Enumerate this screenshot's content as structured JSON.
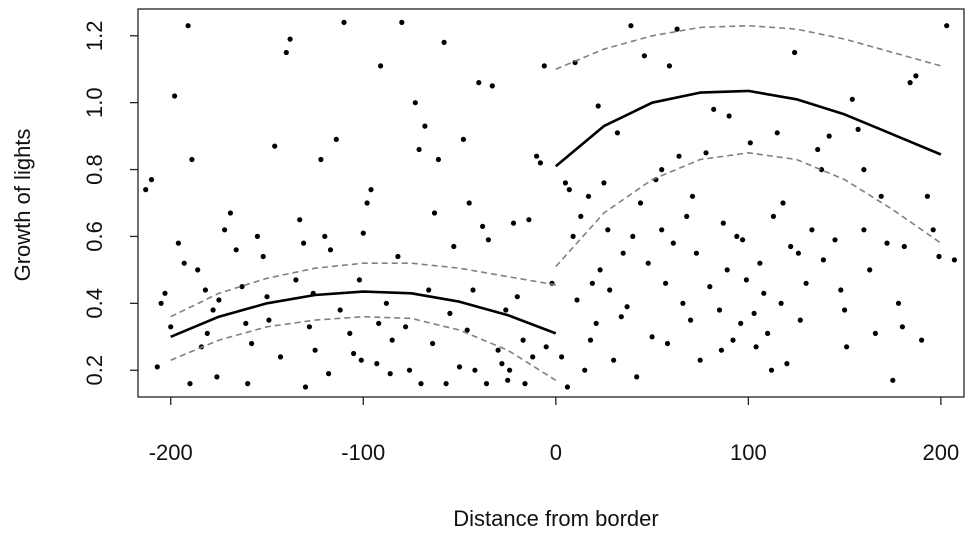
{
  "chart_data": {
    "type": "scatter",
    "title": "",
    "xlabel": "Distance from border",
    "ylabel": "Growth of lights",
    "xlim": [
      -217,
      212
    ],
    "ylim": [
      0.12,
      1.28
    ],
    "xticks": [
      -200,
      -100,
      0,
      100,
      200
    ],
    "xtick_labels": [
      "-200",
      "-100",
      "0",
      "100",
      "200"
    ],
    "yticks": [
      0.2,
      0.4,
      0.6,
      0.8,
      1.0,
      1.2
    ],
    "ytick_labels": [
      "0.2",
      "0.4",
      "0.6",
      "0.8",
      "1.0",
      "1.2"
    ],
    "grid": false,
    "colors": {
      "points": "#000000",
      "fit": "#000000",
      "ci": "#808080"
    },
    "fit_left": {
      "x": [
        -200,
        -175,
        -150,
        -125,
        -100,
        -75,
        -50,
        -25,
        0
      ],
      "y": [
        0.3,
        0.36,
        0.4,
        0.425,
        0.435,
        0.43,
        0.405,
        0.365,
        0.31
      ]
    },
    "ci_left_upper": {
      "x": [
        -200,
        -175,
        -150,
        -125,
        -100,
        -75,
        -50,
        -25,
        0
      ],
      "y": [
        0.36,
        0.43,
        0.475,
        0.505,
        0.52,
        0.52,
        0.505,
        0.48,
        0.455
      ]
    },
    "ci_left_lower": {
      "x": [
        -200,
        -175,
        -150,
        -125,
        -100,
        -75,
        -50,
        -25,
        0
      ],
      "y": [
        0.23,
        0.29,
        0.33,
        0.35,
        0.36,
        0.355,
        0.32,
        0.26,
        0.17
      ]
    },
    "fit_right": {
      "x": [
        0,
        25,
        50,
        75,
        100,
        125,
        150,
        175,
        200
      ],
      "y": [
        0.81,
        0.93,
        1.0,
        1.03,
        1.035,
        1.01,
        0.965,
        0.905,
        0.845
      ]
    },
    "ci_right_upper": {
      "x": [
        0,
        25,
        50,
        75,
        100,
        125,
        150,
        175,
        200
      ],
      "y": [
        1.1,
        1.16,
        1.2,
        1.225,
        1.23,
        1.22,
        1.19,
        1.15,
        1.11
      ]
    },
    "ci_right_lower": {
      "x": [
        0,
        25,
        50,
        75,
        100,
        125,
        150,
        175,
        200
      ],
      "y": [
        0.51,
        0.67,
        0.77,
        0.83,
        0.85,
        0.83,
        0.77,
        0.68,
        0.58
      ]
    },
    "points": [
      {
        "x": -213,
        "y": 0.74
      },
      {
        "x": -210,
        "y": 0.77
      },
      {
        "x": -205,
        "y": 0.4
      },
      {
        "x": -203,
        "y": 0.43
      },
      {
        "x": -200,
        "y": 0.33
      },
      {
        "x": -198,
        "y": 1.02
      },
      {
        "x": -196,
        "y": 0.58
      },
      {
        "x": -193,
        "y": 0.52
      },
      {
        "x": -191,
        "y": 1.23
      },
      {
        "x": -189,
        "y": 0.83
      },
      {
        "x": -186,
        "y": 0.5
      },
      {
        "x": -184,
        "y": 0.27
      },
      {
        "x": -181,
        "y": 0.31
      },
      {
        "x": -178,
        "y": 0.38
      },
      {
        "x": -175,
        "y": 0.41
      },
      {
        "x": -172,
        "y": 0.62
      },
      {
        "x": -169,
        "y": 0.67
      },
      {
        "x": -166,
        "y": 0.56
      },
      {
        "x": -163,
        "y": 0.45
      },
      {
        "x": -161,
        "y": 0.34
      },
      {
        "x": -158,
        "y": 0.28
      },
      {
        "x": -155,
        "y": 0.6
      },
      {
        "x": -152,
        "y": 0.54
      },
      {
        "x": -149,
        "y": 0.35
      },
      {
        "x": -146,
        "y": 0.87
      },
      {
        "x": -143,
        "y": 0.24
      },
      {
        "x": -140,
        "y": 1.15
      },
      {
        "x": -138,
        "y": 1.19
      },
      {
        "x": -135,
        "y": 0.47
      },
      {
        "x": -133,
        "y": 0.65
      },
      {
        "x": -131,
        "y": 0.58
      },
      {
        "x": -128,
        "y": 0.33
      },
      {
        "x": -125,
        "y": 0.26
      },
      {
        "x": -122,
        "y": 0.83
      },
      {
        "x": -120,
        "y": 0.6
      },
      {
        "x": -117,
        "y": 0.56
      },
      {
        "x": -114,
        "y": 0.89
      },
      {
        "x": -112,
        "y": 0.38
      },
      {
        "x": -110,
        "y": 1.24
      },
      {
        "x": -107,
        "y": 0.31
      },
      {
        "x": -105,
        "y": 0.25
      },
      {
        "x": -102,
        "y": 0.47
      },
      {
        "x": -100,
        "y": 0.61
      },
      {
        "x": -98,
        "y": 0.7
      },
      {
        "x": -96,
        "y": 0.74
      },
      {
        "x": -93,
        "y": 0.22
      },
      {
        "x": -91,
        "y": 1.11
      },
      {
        "x": -88,
        "y": 0.4
      },
      {
        "x": -85,
        "y": 0.29
      },
      {
        "x": -82,
        "y": 0.54
      },
      {
        "x": -80,
        "y": 1.24
      },
      {
        "x": -78,
        "y": 0.33
      },
      {
        "x": -76,
        "y": 0.2
      },
      {
        "x": -73,
        "y": 1.0
      },
      {
        "x": -71,
        "y": 0.86
      },
      {
        "x": -68,
        "y": 0.93
      },
      {
        "x": -66,
        "y": 0.44
      },
      {
        "x": -63,
        "y": 0.67
      },
      {
        "x": -61,
        "y": 0.83
      },
      {
        "x": -58,
        "y": 1.18
      },
      {
        "x": -55,
        "y": 0.37
      },
      {
        "x": -53,
        "y": 0.57
      },
      {
        "x": -50,
        "y": 0.21
      },
      {
        "x": -48,
        "y": 0.89
      },
      {
        "x": -45,
        "y": 0.7
      },
      {
        "x": -43,
        "y": 0.44
      },
      {
        "x": -40,
        "y": 1.06
      },
      {
        "x": -38,
        "y": 0.63
      },
      {
        "x": -35,
        "y": 0.59
      },
      {
        "x": -33,
        "y": 1.05
      },
      {
        "x": -30,
        "y": 0.26
      },
      {
        "x": -28,
        "y": 0.22
      },
      {
        "x": -25,
        "y": 0.17
      },
      {
        "x": -22,
        "y": 0.64
      },
      {
        "x": -20,
        "y": 0.42
      },
      {
        "x": -17,
        "y": 0.29
      },
      {
        "x": -14,
        "y": 0.65
      },
      {
        "x": -12,
        "y": 0.24
      },
      {
        "x": -10,
        "y": 0.84
      },
      {
        "x": -8,
        "y": 0.82
      },
      {
        "x": -5,
        "y": 0.27
      },
      {
        "x": -2,
        "y": 0.46
      },
      {
        "x": -6,
        "y": 1.11
      },
      {
        "x": -190,
        "y": 0.16
      },
      {
        "x": -176,
        "y": 0.18
      },
      {
        "x": -160,
        "y": 0.16
      },
      {
        "x": -130,
        "y": 0.15
      },
      {
        "x": -118,
        "y": 0.19
      },
      {
        "x": -101,
        "y": 0.23
      },
      {
        "x": -86,
        "y": 0.19
      },
      {
        "x": -70,
        "y": 0.16
      },
      {
        "x": -57,
        "y": 0.16
      },
      {
        "x": -42,
        "y": 0.2
      },
      {
        "x": -36,
        "y": 0.16
      },
      {
        "x": -24,
        "y": 0.2
      },
      {
        "x": -16,
        "y": 0.16
      },
      {
        "x": -150,
        "y": 0.42
      },
      {
        "x": -126,
        "y": 0.43
      },
      {
        "x": -92,
        "y": 0.34
      },
      {
        "x": -64,
        "y": 0.28
      },
      {
        "x": -46,
        "y": 0.32
      },
      {
        "x": -26,
        "y": 0.38
      },
      {
        "x": -182,
        "y": 0.44
      },
      {
        "x": -207,
        "y": 0.21
      },
      {
        "x": 3,
        "y": 0.24
      },
      {
        "x": 5,
        "y": 0.76
      },
      {
        "x": 7,
        "y": 0.74
      },
      {
        "x": 9,
        "y": 0.6
      },
      {
        "x": 11,
        "y": 0.41
      },
      {
        "x": 13,
        "y": 0.66
      },
      {
        "x": 15,
        "y": 0.2
      },
      {
        "x": 17,
        "y": 0.72
      },
      {
        "x": 19,
        "y": 0.46
      },
      {
        "x": 21,
        "y": 0.34
      },
      {
        "x": 23,
        "y": 0.5
      },
      {
        "x": 25,
        "y": 0.76
      },
      {
        "x": 27,
        "y": 0.62
      },
      {
        "x": 30,
        "y": 0.23
      },
      {
        "x": 32,
        "y": 0.91
      },
      {
        "x": 35,
        "y": 0.55
      },
      {
        "x": 37,
        "y": 0.39
      },
      {
        "x": 39,
        "y": 1.23
      },
      {
        "x": 42,
        "y": 0.18
      },
      {
        "x": 44,
        "y": 0.7
      },
      {
        "x": 46,
        "y": 1.14
      },
      {
        "x": 48,
        "y": 0.52
      },
      {
        "x": 50,
        "y": 0.3
      },
      {
        "x": 52,
        "y": 0.77
      },
      {
        "x": 55,
        "y": 0.62
      },
      {
        "x": 57,
        "y": 0.46
      },
      {
        "x": 59,
        "y": 1.11
      },
      {
        "x": 61,
        "y": 0.58
      },
      {
        "x": 63,
        "y": 1.22
      },
      {
        "x": 66,
        "y": 0.4
      },
      {
        "x": 68,
        "y": 0.66
      },
      {
        "x": 70,
        "y": 0.35
      },
      {
        "x": 73,
        "y": 0.55
      },
      {
        "x": 75,
        "y": 0.23
      },
      {
        "x": 78,
        "y": 0.85
      },
      {
        "x": 80,
        "y": 0.45
      },
      {
        "x": 82,
        "y": 0.98
      },
      {
        "x": 85,
        "y": 0.38
      },
      {
        "x": 87,
        "y": 0.64
      },
      {
        "x": 89,
        "y": 0.5
      },
      {
        "x": 92,
        "y": 0.29
      },
      {
        "x": 94,
        "y": 0.6
      },
      {
        "x": 96,
        "y": 0.34
      },
      {
        "x": 99,
        "y": 0.47
      },
      {
        "x": 101,
        "y": 0.88
      },
      {
        "x": 104,
        "y": 0.27
      },
      {
        "x": 106,
        "y": 0.52
      },
      {
        "x": 108,
        "y": 0.43
      },
      {
        "x": 110,
        "y": 0.31
      },
      {
        "x": 113,
        "y": 0.66
      },
      {
        "x": 115,
        "y": 0.91
      },
      {
        "x": 117,
        "y": 0.4
      },
      {
        "x": 120,
        "y": 0.22
      },
      {
        "x": 122,
        "y": 0.57
      },
      {
        "x": 124,
        "y": 1.15
      },
      {
        "x": 127,
        "y": 0.35
      },
      {
        "x": 130,
        "y": 0.46
      },
      {
        "x": 133,
        "y": 0.62
      },
      {
        "x": 136,
        "y": 0.86
      },
      {
        "x": 139,
        "y": 0.53
      },
      {
        "x": 142,
        "y": 0.9
      },
      {
        "x": 145,
        "y": 0.59
      },
      {
        "x": 148,
        "y": 0.44
      },
      {
        "x": 151,
        "y": 0.27
      },
      {
        "x": 154,
        "y": 1.01
      },
      {
        "x": 157,
        "y": 0.92
      },
      {
        "x": 160,
        "y": 0.62
      },
      {
        "x": 163,
        "y": 0.5
      },
      {
        "x": 166,
        "y": 0.31
      },
      {
        "x": 169,
        "y": 0.72
      },
      {
        "x": 172,
        "y": 0.58
      },
      {
        "x": 175,
        "y": 0.17
      },
      {
        "x": 178,
        "y": 0.4
      },
      {
        "x": 181,
        "y": 0.57
      },
      {
        "x": 184,
        "y": 1.06
      },
      {
        "x": 187,
        "y": 1.08
      },
      {
        "x": 190,
        "y": 0.29
      },
      {
        "x": 193,
        "y": 0.72
      },
      {
        "x": 196,
        "y": 0.62
      },
      {
        "x": 199,
        "y": 0.54
      },
      {
        "x": 203,
        "y": 1.23
      },
      {
        "x": 207,
        "y": 0.53
      },
      {
        "x": 10,
        "y": 1.12
      },
      {
        "x": 22,
        "y": 0.99
      },
      {
        "x": 55,
        "y": 0.8
      },
      {
        "x": 64,
        "y": 0.84
      },
      {
        "x": 90,
        "y": 0.96
      },
      {
        "x": 118,
        "y": 0.7
      },
      {
        "x": 138,
        "y": 0.8
      },
      {
        "x": 58,
        "y": 0.28
      },
      {
        "x": 86,
        "y": 0.26
      },
      {
        "x": 112,
        "y": 0.2
      },
      {
        "x": 28,
        "y": 0.44
      },
      {
        "x": 40,
        "y": 0.6
      },
      {
        "x": 71,
        "y": 0.72
      },
      {
        "x": 97,
        "y": 0.59
      },
      {
        "x": 126,
        "y": 0.55
      },
      {
        "x": 150,
        "y": 0.38
      },
      {
        "x": 180,
        "y": 0.33
      },
      {
        "x": 6,
        "y": 0.15
      },
      {
        "x": 18,
        "y": 0.29
      },
      {
        "x": 34,
        "y": 0.36
      },
      {
        "x": 103,
        "y": 0.37
      },
      {
        "x": 160,
        "y": 0.8
      }
    ]
  }
}
